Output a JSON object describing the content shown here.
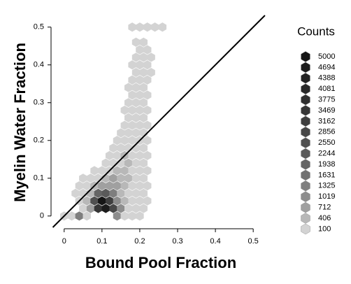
{
  "chart_data": {
    "type": "hexbin",
    "x_label": "Bound Pool Fraction",
    "y_label": "Myelin Water Fraction",
    "xlim": [
      -0.031,
      0.533
    ],
    "ylim": [
      -0.03,
      0.531
    ],
    "xticks": [
      0,
      0.1,
      0.2,
      0.3,
      0.4,
      0.5
    ],
    "yticks": [
      0,
      0.1,
      0.2,
      0.3,
      0.4,
      0.5
    ],
    "identity_line": true,
    "legend": {
      "title": "Counts",
      "levels": [
        5000,
        4694,
        4388,
        4081,
        3775,
        3469,
        3162,
        2856,
        2550,
        2244,
        1938,
        1631,
        1325,
        1019,
        712,
        406,
        100
      ],
      "colors": [
        "#161616",
        "#1c1c1c",
        "#222222",
        "#282828",
        "#2f2f2f",
        "#363636",
        "#3e3e3e",
        "#474747",
        "#505050",
        "#5a5a5a",
        "#656565",
        "#717171",
        "#7e7e7e",
        "#8d8d8d",
        "#a0a0a0",
        "#b8b8b8",
        "#d3d3d3"
      ]
    },
    "rows": [
      {
        "y": 0,
        "x": [
          0,
          0.02,
          0.04,
          0.06,
          0.14,
          0.16,
          0.18,
          0.2
        ],
        "counts": [
          100,
          150,
          1500,
          300,
          1300,
          300,
          100,
          100
        ]
      },
      {
        "y": 0.02,
        "x": [
          0.05,
          0.07,
          0.09,
          0.11,
          0.13,
          0.15,
          0.17,
          0.19,
          0.21
        ],
        "counts": [
          300,
          1000,
          3500,
          4700,
          3000,
          1200,
          400,
          200,
          100
        ]
      },
      {
        "y": 0.04,
        "x": [
          0.04,
          0.06,
          0.08,
          0.1,
          0.12,
          0.14,
          0.16,
          0.18,
          0.2,
          0.22
        ],
        "counts": [
          100,
          600,
          2600,
          5000,
          3200,
          1300,
          500,
          200,
          100,
          100
        ]
      },
      {
        "y": 0.06,
        "x": [
          0.03,
          0.05,
          0.07,
          0.09,
          0.11,
          0.13,
          0.15,
          0.17,
          0.19,
          0.21
        ],
        "counts": [
          100,
          200,
          700,
          2000,
          2300,
          1400,
          700,
          300,
          150,
          100
        ]
      },
      {
        "y": 0.08,
        "x": [
          0.04,
          0.06,
          0.08,
          0.1,
          0.12,
          0.14,
          0.16,
          0.18,
          0.2,
          0.22
        ],
        "counts": [
          100,
          200,
          500,
          900,
          1000,
          800,
          600,
          300,
          150,
          100
        ]
      },
      {
        "y": 0.1,
        "x": [
          0.05,
          0.07,
          0.09,
          0.11,
          0.13,
          0.15,
          0.17,
          0.19,
          0.21
        ],
        "counts": [
          100,
          150,
          300,
          500,
          800,
          700,
          500,
          200,
          100
        ]
      },
      {
        "y": 0.12,
        "x": [
          0.08,
          0.1,
          0.12,
          0.14,
          0.16,
          0.18,
          0.2,
          0.22
        ],
        "counts": [
          100,
          150,
          300,
          500,
          600,
          300,
          150,
          100
        ]
      },
      {
        "y": 0.14,
        "x": [
          0.11,
          0.13,
          0.15,
          0.17,
          0.19,
          0.21
        ],
        "counts": [
          100,
          200,
          400,
          500,
          200,
          100
        ]
      },
      {
        "y": 0.16,
        "x": [
          0.12,
          0.14,
          0.16,
          0.18,
          0.2,
          0.22
        ],
        "counts": [
          100,
          200,
          450,
          350,
          150,
          100
        ]
      },
      {
        "y": 0.18,
        "x": [
          0.13,
          0.15,
          0.17,
          0.19,
          0.21
        ],
        "counts": [
          100,
          200,
          400,
          200,
          100
        ]
      },
      {
        "y": 0.2,
        "x": [
          0.14,
          0.16,
          0.18,
          0.2,
          0.22
        ],
        "counts": [
          100,
          200,
          300,
          150,
          100
        ]
      },
      {
        "y": 0.22,
        "x": [
          0.15,
          0.17,
          0.19,
          0.21
        ],
        "counts": [
          100,
          150,
          150,
          100
        ]
      },
      {
        "y": 0.24,
        "x": [
          0.16,
          0.18,
          0.2,
          0.22
        ],
        "counts": [
          100,
          120,
          120,
          100
        ]
      },
      {
        "y": 0.26,
        "x": [
          0.17,
          0.19,
          0.21
        ],
        "counts": [
          100,
          100,
          100
        ]
      },
      {
        "y": 0.28,
        "x": [
          0.16,
          0.18,
          0.2,
          0.22
        ],
        "counts": [
          100,
          100,
          100,
          100
        ]
      },
      {
        "y": 0.3,
        "x": [
          0.17,
          0.19,
          0.21
        ],
        "counts": [
          100,
          100,
          100
        ]
      },
      {
        "y": 0.32,
        "x": [
          0.18,
          0.2,
          0.22
        ],
        "counts": [
          100,
          100,
          100
        ]
      },
      {
        "y": 0.34,
        "x": [
          0.17,
          0.19,
          0.21
        ],
        "counts": [
          100,
          100,
          100
        ]
      },
      {
        "y": 0.36,
        "x": [
          0.18,
          0.2,
          0.22
        ],
        "counts": [
          100,
          100,
          100
        ]
      },
      {
        "y": 0.38,
        "x": [
          0.19,
          0.21,
          0.23
        ],
        "counts": [
          100,
          100,
          100
        ]
      },
      {
        "y": 0.4,
        "x": [
          0.18,
          0.2,
          0.22
        ],
        "counts": [
          100,
          100,
          100
        ]
      },
      {
        "y": 0.42,
        "x": [
          0.19,
          0.21,
          0.23
        ],
        "counts": [
          100,
          100,
          100
        ]
      },
      {
        "y": 0.44,
        "x": [
          0.2,
          0.22
        ],
        "counts": [
          100,
          100
        ]
      },
      {
        "y": 0.46,
        "x": [
          0.19,
          0.21
        ],
        "counts": [
          100,
          100
        ]
      },
      {
        "y": 0.5,
        "x": [
          0.18,
          0.2,
          0.22,
          0.24,
          0.26
        ],
        "counts": [
          100,
          300,
          300,
          100,
          100
        ]
      }
    ]
  }
}
